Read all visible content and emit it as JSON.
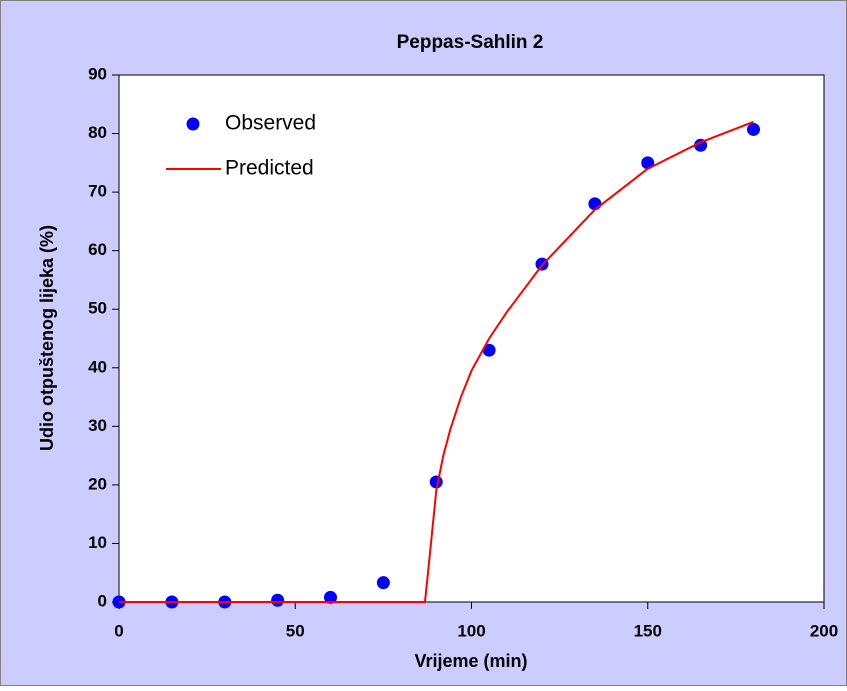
{
  "chart_data": {
    "type": "scatter",
    "title": "Peppas-Sahlin 2",
    "x_label": "Vrijeme (min)",
    "y_label": "Udio otpuštenog lijeka (%)",
    "xlim": [
      0,
      200
    ],
    "ylim": [
      0,
      90
    ],
    "xticks": [
      0,
      50,
      100,
      150,
      200
    ],
    "yticks": [
      0,
      10,
      20,
      30,
      40,
      50,
      60,
      70,
      80,
      90
    ],
    "legend": "upper left",
    "series": [
      {
        "name": "Observed",
        "color": "#0000ff",
        "mode": "markers",
        "x": [
          0,
          15,
          30,
          45,
          60,
          75,
          90,
          105,
          120,
          135,
          150,
          165,
          180
        ],
        "values": [
          0,
          0,
          0,
          0.3,
          0.8,
          3.3,
          20.5,
          43,
          57.7,
          68,
          75,
          78,
          80.7
        ]
      },
      {
        "name": "Predicted",
        "color": "#ff0000",
        "mode": "line",
        "x": [
          0,
          86.8,
          88,
          89,
          90,
          92,
          94,
          97,
          100,
          105,
          110,
          120,
          135,
          150,
          165,
          180
        ],
        "values": [
          0,
          0,
          7,
          13,
          19,
          25,
          29.5,
          35,
          39.5,
          45,
          49.5,
          57.5,
          67,
          74,
          78.5,
          82
        ]
      }
    ]
  }
}
